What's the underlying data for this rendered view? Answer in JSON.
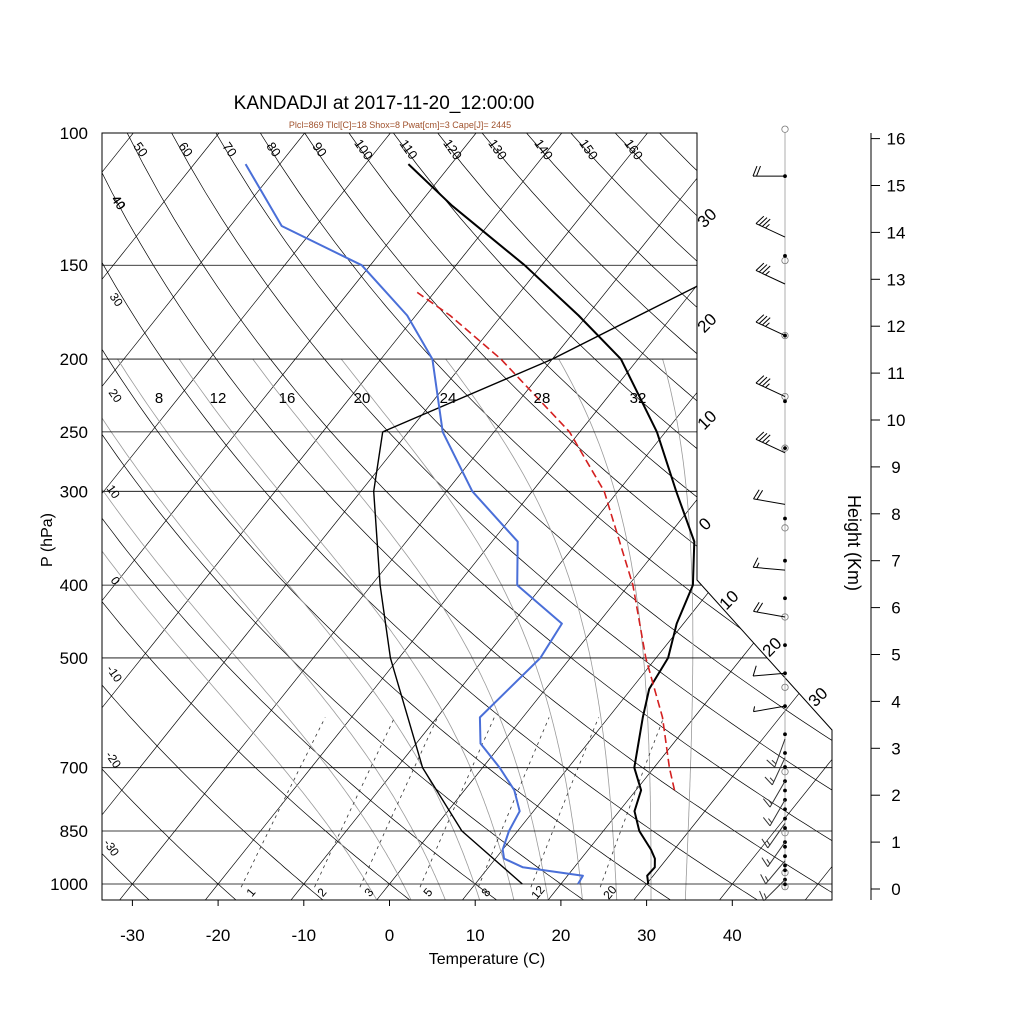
{
  "chart_data": {
    "type": "skew-t",
    "title": "KANDADJI at 2017-11-20_12:00:00",
    "subtitle": "Plcl=869 Tlcl[C]=18 Shox=8 Pwat[cm]=3 Cape[J]= 2445",
    "xlabel": "Temperature (C)",
    "ylabel": "P (hPa)",
    "right_label": "Height (Km)",
    "xlim": [
      -34,
      36
    ],
    "plim": [
      1000,
      100
    ],
    "x_ticks": [
      -30,
      -20,
      -10,
      0,
      10,
      20,
      30,
      40
    ],
    "p_ticks": [
      100,
      150,
      200,
      250,
      300,
      400,
      500,
      700,
      850,
      1000
    ],
    "height_ticks": [
      0,
      1,
      2,
      3,
      4,
      5,
      6,
      7,
      8,
      9,
      10,
      11,
      12,
      13,
      14,
      15,
      16
    ],
    "dry_adiabat_labels": [
      40,
      50,
      60,
      70,
      80,
      90,
      100,
      110,
      120,
      130,
      140,
      150,
      160
    ],
    "moist_adiabat_labels": [
      8,
      12,
      16,
      20,
      24,
      28,
      32
    ],
    "mixing_ratio_labels": [
      1,
      2,
      3,
      5,
      8,
      12,
      20
    ],
    "isotherm_labels": [
      30,
      20,
      10,
      0,
      10,
      20,
      30
    ],
    "left_isotherm_labels": [
      40,
      30,
      20,
      10,
      0,
      -10,
      -20,
      -30
    ],
    "series": [
      {
        "name": "temperature",
        "color": "#000000",
        "points": [
          [
            1000,
            30.2
          ],
          [
            975,
            29.3
          ],
          [
            950,
            29.4
          ],
          [
            925,
            28.6
          ],
          [
            900,
            27.3
          ],
          [
            850,
            24.2
          ],
          [
            800,
            21.8
          ],
          [
            750,
            20.6
          ],
          [
            700,
            17.7
          ],
          [
            600,
            14.0
          ],
          [
            550,
            12.1
          ],
          [
            500,
            11.4
          ],
          [
            450,
            9.2
          ],
          [
            400,
            7.5
          ],
          [
            350,
            3.6
          ],
          [
            300,
            -3.2
          ],
          [
            250,
            -11.0
          ],
          [
            200,
            -22.0
          ],
          [
            175,
            -31.0
          ],
          [
            150,
            -42.0
          ],
          [
            125,
            -56.0
          ],
          [
            110,
            -65.0
          ]
        ]
      },
      {
        "name": "dewpoint",
        "color": "#4a6fd8",
        "points": [
          [
            1000,
            22.0
          ],
          [
            975,
            21.8
          ],
          [
            950,
            14.0
          ],
          [
            925,
            11.0
          ],
          [
            900,
            10.0
          ],
          [
            850,
            9.0
          ],
          [
            800,
            8.4
          ],
          [
            750,
            5.8
          ],
          [
            700,
            2.0
          ],
          [
            650,
            -2.5
          ],
          [
            600,
            -5.0
          ],
          [
            500,
            -3.5
          ],
          [
            450,
            -4.2
          ],
          [
            400,
            -13.0
          ],
          [
            350,
            -17.0
          ],
          [
            300,
            -27.0
          ],
          [
            250,
            -36.0
          ],
          [
            200,
            -44.0
          ],
          [
            175,
            -51.0
          ],
          [
            150,
            -61.0
          ],
          [
            133,
            -74.0
          ],
          [
            110,
            -84.0
          ]
        ]
      },
      {
        "name": "parcel",
        "color": "#d42020",
        "dash": "8,4",
        "points": [
          [
            750,
            24.5
          ],
          [
            700,
            21.8
          ],
          [
            600,
            16.3
          ],
          [
            500,
            8.8
          ],
          [
            400,
            0.5
          ],
          [
            300,
            -11.6
          ],
          [
            250,
            -21.2
          ],
          [
            200,
            -36.0
          ],
          [
            175,
            -46.0
          ],
          [
            163,
            -52.0
          ]
        ]
      }
    ],
    "environmental_lapse_line": {
      "name": "lapse",
      "color": "#000000",
      "points": [
        [
          1000,
          15.5
        ],
        [
          850,
          3.5
        ],
        [
          700,
          -7.0
        ],
        [
          500,
          -21.0
        ],
        [
          400,
          -29.0
        ],
        [
          300,
          -38.5
        ],
        [
          250,
          -43.0
        ],
        [
          200,
          -30.0
        ],
        [
          150,
          -17.0
        ],
        [
          110,
          -3.0
        ]
      ]
    },
    "wind_barbs_upper": [
      {
        "km": 15.2,
        "speed": 20,
        "dir": 270
      },
      {
        "km": 13.9,
        "speed": 35,
        "dir": 245
      },
      {
        "km": 12.9,
        "speed": 35,
        "dir": 245
      },
      {
        "km": 11.8,
        "speed": 35,
        "dir": 245
      },
      {
        "km": 10.5,
        "speed": 35,
        "dir": 245
      },
      {
        "km": 9.3,
        "speed": 35,
        "dir": 245
      },
      {
        "km": 8.2,
        "speed": 20,
        "dir": 260
      },
      {
        "km": 6.8,
        "speed": 15,
        "dir": 265
      },
      {
        "km": 5.8,
        "speed": 20,
        "dir": 260
      },
      {
        "km": 4.6,
        "speed": 10,
        "dir": 275
      },
      {
        "km": 3.9,
        "speed": 5,
        "dir": 280
      }
    ],
    "wind_barbs_lower": [
      {
        "km": 3.2,
        "speed": 15,
        "dir": 340
      },
      {
        "km": 2.8,
        "speed": 15,
        "dir": 335
      },
      {
        "km": 2.3,
        "speed": 15,
        "dir": 330
      },
      {
        "km": 1.9,
        "speed": 15,
        "dir": 330
      },
      {
        "km": 1.4,
        "speed": 15,
        "dir": 325
      },
      {
        "km": 1.0,
        "speed": 15,
        "dir": 325
      },
      {
        "km": 0.6,
        "speed": 15,
        "dir": 320
      },
      {
        "km": 0.2,
        "speed": 15,
        "dir": 315
      }
    ],
    "grid": true
  }
}
